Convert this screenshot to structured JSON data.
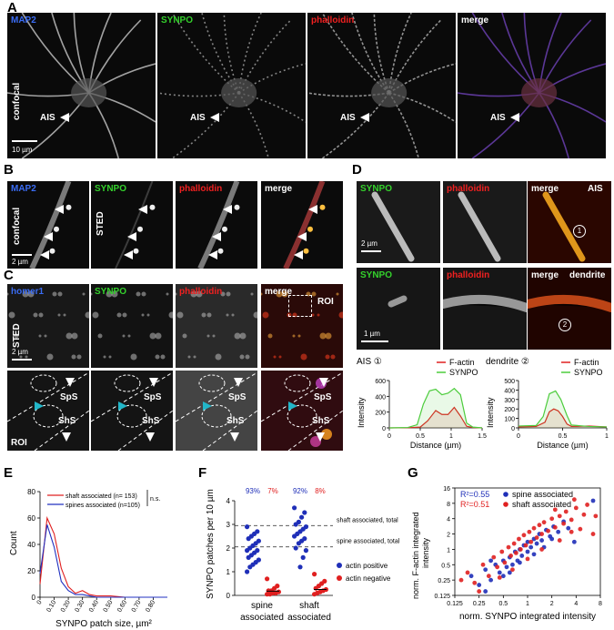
{
  "panel_letters": {
    "A": "A",
    "B": "B",
    "C": "C",
    "D": "D",
    "E": "E",
    "F": "F",
    "G": "G"
  },
  "panelA": {
    "channels": [
      "MAP2",
      "SYNPO",
      "phalloidin",
      "merge"
    ],
    "side_label": "confocal",
    "ais_label": "AIS",
    "scalebar": "10 µm"
  },
  "panelB": {
    "channels": [
      "MAP2",
      "SYNPO",
      "phalloidin",
      "merge"
    ],
    "side_label_1": "confocal",
    "side_label_2": "STED",
    "scalebar": "2 µm"
  },
  "panelC": {
    "channels": [
      "homer1",
      "SYNPO",
      "phalloidin",
      "merge"
    ],
    "side_label": "STED",
    "roi_label": "ROI",
    "roi_corner": "ROI",
    "scalebar": "2 µm",
    "sps": "SpS",
    "shs": "ShS"
  },
  "panelD": {
    "row1": [
      "SYNPO",
      "phalloidin",
      "merge"
    ],
    "row1_tag": "AIS",
    "row2": [
      "SYNPO",
      "phalloidin",
      "merge"
    ],
    "row2_tag": "dendrite",
    "scalebar1": "2 µm",
    "scalebar2": "1 µm",
    "marker1": "1",
    "marker2": "2"
  },
  "colors": {
    "map2": "#3a6cf4",
    "synpo": "#34d12c",
    "phalloidin": "#f02020",
    "actin_pos": "#1f2fb8",
    "actin_neg": "#e02020",
    "shaft_line": "#e02020",
    "spine_line": "#2030c0"
  },
  "chart_data": [
    {
      "id": "D-AIS",
      "type": "area",
      "title": "AIS ①",
      "xlabel": "Distance (µm)",
      "ylabel": "Intensity",
      "xlim": [
        0,
        1.5
      ],
      "ylim": [
        0,
        600
      ],
      "xticks": [
        "0",
        "0.5",
        "1",
        "1.5"
      ],
      "yticks": [
        "0",
        "200",
        "400",
        "600"
      ],
      "series": [
        {
          "name": "F-actin",
          "color": "#e02020",
          "x": [
            0,
            0.3,
            0.5,
            0.62,
            0.75,
            0.85,
            0.95,
            1.05,
            1.15,
            1.25,
            1.35,
            1.5
          ],
          "y": [
            0,
            2,
            10,
            90,
            220,
            170,
            170,
            260,
            150,
            20,
            5,
            0
          ]
        },
        {
          "name": "SYNPO",
          "color": "#4ccc3c",
          "x": [
            0,
            0.3,
            0.45,
            0.55,
            0.65,
            0.75,
            0.85,
            0.95,
            1.05,
            1.15,
            1.25,
            1.35,
            1.5
          ],
          "y": [
            0,
            5,
            40,
            300,
            470,
            490,
            420,
            440,
            500,
            420,
            60,
            10,
            0
          ]
        }
      ]
    },
    {
      "id": "D-dendrite",
      "type": "area",
      "title": "dendrite ②",
      "xlabel": "Distance (µm)",
      "ylabel": "Intensity",
      "xlim": [
        0,
        1
      ],
      "ylim": [
        0,
        500
      ],
      "xticks": [
        "0",
        "0.5",
        "1"
      ],
      "yticks": [
        "0",
        "100",
        "200",
        "300",
        "400",
        "500"
      ],
      "series": [
        {
          "name": "F-actin",
          "color": "#e02020",
          "x": [
            0,
            0.2,
            0.3,
            0.35,
            0.4,
            0.45,
            0.5,
            0.55,
            0.6,
            0.8,
            1.0
          ],
          "y": [
            10,
            15,
            60,
            170,
            200,
            180,
            120,
            40,
            15,
            20,
            10
          ]
        },
        {
          "name": "SYNPO",
          "color": "#4ccc3c",
          "x": [
            0,
            0.2,
            0.28,
            0.35,
            0.42,
            0.48,
            0.55,
            0.6,
            0.8,
            1.0
          ],
          "y": [
            20,
            25,
            120,
            360,
            390,
            300,
            130,
            30,
            15,
            10
          ]
        }
      ]
    },
    {
      "id": "E",
      "type": "line",
      "xlabel": "SYNPO patch size, µm²",
      "ylabel": "Count",
      "xlim": [
        0,
        0.9
      ],
      "ylim": [
        0,
        80
      ],
      "xticks": [
        "0",
        "0.10",
        "0.20",
        "0.30",
        "0.40",
        "0.50",
        "0.60",
        "0.70",
        "0.80"
      ],
      "yticks": [
        "0",
        "20",
        "40",
        "60",
        "80"
      ],
      "annotation": "n.s.",
      "series": [
        {
          "name": "shaft associated (n= 153)",
          "color": "#e02020",
          "x": [
            0,
            0.05,
            0.1,
            0.15,
            0.2,
            0.25,
            0.3,
            0.35,
            0.4,
            0.5,
            0.6,
            0.7,
            0.8,
            0.9
          ],
          "y": [
            10,
            60,
            48,
            22,
            8,
            3,
            5,
            2,
            1,
            1,
            0,
            0,
            0,
            0
          ]
        },
        {
          "name": "spines associated (n=105)",
          "color": "#2030c0",
          "x": [
            0,
            0.05,
            0.1,
            0.15,
            0.2,
            0.25,
            0.3,
            0.35,
            0.4,
            0.5,
            0.6,
            0.7,
            0.8,
            0.9
          ],
          "y": [
            18,
            55,
            38,
            12,
            5,
            2,
            2,
            1,
            0,
            0,
            0,
            0,
            0,
            0
          ]
        }
      ]
    },
    {
      "id": "F",
      "type": "scatter",
      "ylabel": "SYNPO patches per 10 µm",
      "categories": [
        "spine associated",
        "shaft associated"
      ],
      "ylim": [
        0,
        4
      ],
      "yticks": [
        "0",
        "1",
        "2",
        "3",
        "4"
      ],
      "ref_lines": [
        {
          "label": "shaft associated, total",
          "y": 2.95
        },
        {
          "label": "spine associated, total",
          "y": 2.05
        }
      ],
      "percent_labels": [
        {
          "text": "93%",
          "color": "#1f2fb8"
        },
        {
          "text": "7%",
          "color": "#e02020"
        },
        {
          "text": "92%",
          "color": "#1f2fb8"
        },
        {
          "text": "8%",
          "color": "#e02020"
        }
      ],
      "legend": [
        "actin positive",
        "actin negative"
      ],
      "series": [
        {
          "name": "actin positive",
          "color": "#1f2fb8",
          "category": 0,
          "values": [
            2.9,
            2.7,
            2.6,
            2.5,
            2.4,
            2.3,
            2.2,
            2.1,
            2.0,
            1.9,
            1.9,
            1.8,
            1.7,
            1.6,
            1.5,
            1.4,
            1.3,
            1.2,
            1.0
          ]
        },
        {
          "name": "actin negative",
          "color": "#e02020",
          "category": 0,
          "values": [
            0.7,
            0.4,
            0.3,
            0.2,
            0.2,
            0.15,
            0.1,
            0.1,
            0.05,
            0.05
          ]
        },
        {
          "name": "actin positive",
          "color": "#1f2fb8",
          "category": 1,
          "values": [
            3.7,
            3.5,
            3.3,
            3.1,
            3.0,
            2.9,
            2.8,
            2.7,
            2.6,
            2.5,
            2.4,
            2.3,
            2.2,
            2.0,
            1.9,
            1.6,
            1.2
          ]
        },
        {
          "name": "actin negative",
          "color": "#e02020",
          "category": 1,
          "values": [
            0.9,
            0.6,
            0.5,
            0.4,
            0.3,
            0.25,
            0.2,
            0.15,
            0.1,
            0.05
          ]
        }
      ]
    },
    {
      "id": "G",
      "type": "scatter",
      "xlabel": "norm. SYNPO integrated intensity",
      "ylabel": "norm. F-actin integrated intensity",
      "xscale": "log2",
      "yscale": "log2",
      "xlim": [
        0.125,
        8
      ],
      "ylim": [
        0.125,
        16
      ],
      "xticks": [
        "0.125",
        "0.25",
        "0.5",
        "1",
        "2",
        "4",
        "8"
      ],
      "yticks": [
        "0.125",
        "0.25",
        "0.5",
        "1",
        "2",
        "4",
        "8",
        "16"
      ],
      "stats": [
        {
          "text": "R²=0.55",
          "color": "#1f2fb8"
        },
        {
          "text": "R²=0.51",
          "color": "#e02020"
        }
      ],
      "series": [
        {
          "name": "spine associated",
          "color": "#1f2fb8",
          "points": [
            [
              0.2,
              0.3
            ],
            [
              0.25,
              0.2
            ],
            [
              0.3,
              0.4
            ],
            [
              0.35,
              0.25
            ],
            [
              0.4,
              0.5
            ],
            [
              0.45,
              0.35
            ],
            [
              0.5,
              0.6
            ],
            [
              0.5,
              0.3
            ],
            [
              0.55,
              0.45
            ],
            [
              0.6,
              0.7
            ],
            [
              0.65,
              0.5
            ],
            [
              0.7,
              0.9
            ],
            [
              0.75,
              0.6
            ],
            [
              0.8,
              1.0
            ],
            [
              0.85,
              0.75
            ],
            [
              0.9,
              1.2
            ],
            [
              1.0,
              0.9
            ],
            [
              1.0,
              1.4
            ],
            [
              1.1,
              1.1
            ],
            [
              1.2,
              1.6
            ],
            [
              1.3,
              1.3
            ],
            [
              1.4,
              2.0
            ],
            [
              1.5,
              1.5
            ],
            [
              1.7,
              2.4
            ],
            [
              1.9,
              1.8
            ],
            [
              2.1,
              2.8
            ],
            [
              2.4,
              2.2
            ],
            [
              2.8,
              3.5
            ],
            [
              3.2,
              2.6
            ],
            [
              3.8,
              1.4
            ],
            [
              6.5,
              9.0
            ],
            [
              0.3,
              0.15
            ],
            [
              0.35,
              0.6
            ],
            [
              0.6,
              0.35
            ],
            [
              0.8,
              0.55
            ],
            [
              1.2,
              0.8
            ],
            [
              1.6,
              1.1
            ],
            [
              2.0,
              1.6
            ]
          ]
        },
        {
          "name": "shaft associated",
          "color": "#e02020",
          "points": [
            [
              0.15,
              0.25
            ],
            [
              0.18,
              0.35
            ],
            [
              0.22,
              0.22
            ],
            [
              0.28,
              0.5
            ],
            [
              0.33,
              0.3
            ],
            [
              0.38,
              0.7
            ],
            [
              0.42,
              0.45
            ],
            [
              0.48,
              0.9
            ],
            [
              0.52,
              0.55
            ],
            [
              0.58,
              1.1
            ],
            [
              0.62,
              0.75
            ],
            [
              0.68,
              1.3
            ],
            [
              0.72,
              0.85
            ],
            [
              0.78,
              1.6
            ],
            [
              0.82,
              1.0
            ],
            [
              0.9,
              1.9
            ],
            [
              0.95,
              1.2
            ],
            [
              1.05,
              2.2
            ],
            [
              1.1,
              1.4
            ],
            [
              1.2,
              2.6
            ],
            [
              1.3,
              1.7
            ],
            [
              1.4,
              3.0
            ],
            [
              1.5,
              2.0
            ],
            [
              1.6,
              3.4
            ],
            [
              1.8,
              2.3
            ],
            [
              2.0,
              4.0
            ],
            [
              2.2,
              2.7
            ],
            [
              2.5,
              4.5
            ],
            [
              2.8,
              3.2
            ],
            [
              3.0,
              5.5
            ],
            [
              3.5,
              3.8
            ],
            [
              4.0,
              6.5
            ],
            [
              4.5,
              2.5
            ],
            [
              5.0,
              4.8
            ],
            [
              5.5,
              7.5
            ],
            [
              6.5,
              2.0
            ],
            [
              7.0,
              4.5
            ],
            [
              0.25,
              0.15
            ],
            [
              0.45,
              0.28
            ],
            [
              0.65,
              0.4
            ],
            [
              1.0,
              0.65
            ],
            [
              1.5,
              1.0
            ],
            [
              2.5,
              1.5
            ],
            [
              3.5,
              2.2
            ],
            [
              3.8,
              9.5
            ],
            [
              2.2,
              6.0
            ]
          ]
        }
      ]
    }
  ]
}
